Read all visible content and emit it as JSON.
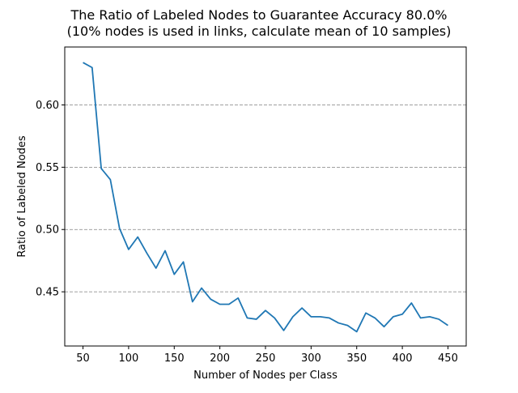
{
  "chart_data": {
    "type": "line",
    "title_line1": "The Ratio of Labeled Nodes to Guarantee Accuracy 80.0%",
    "title_line2": "(10% nodes is used in links, calculate mean of 10 samples)",
    "xlabel": "Number of Nodes per Class",
    "ylabel": "Ratio of Labeled Nodes",
    "xlim": [
      30,
      470
    ],
    "ylim": [
      0.4065,
      0.6465
    ],
    "xticks": [
      50,
      100,
      150,
      200,
      250,
      300,
      350,
      400,
      450
    ],
    "xtick_labels": [
      "50",
      "100",
      "150",
      "200",
      "250",
      "300",
      "350",
      "400",
      "450"
    ],
    "yticks": [
      0.45,
      0.5,
      0.55,
      0.6
    ],
    "ytick_labels": [
      "0.45",
      "0.50",
      "0.55",
      "0.60"
    ],
    "grid": "y-dashed",
    "line_color": "#1f77b4",
    "grid_color": "#808080",
    "series": [
      {
        "x": [
          50,
          60,
          70,
          80,
          90,
          100,
          110,
          120,
          130,
          140,
          150,
          160,
          170,
          180,
          190,
          200,
          210,
          220,
          230,
          240,
          250,
          260,
          270,
          280,
          290,
          300,
          310,
          320,
          330,
          340,
          350,
          360,
          370,
          380,
          390,
          400,
          410,
          420,
          430,
          440,
          450
        ],
        "y": [
          0.634,
          0.63,
          0.549,
          0.54,
          0.501,
          0.484,
          0.494,
          0.481,
          0.469,
          0.483,
          0.464,
          0.474,
          0.442,
          0.453,
          0.444,
          0.44,
          0.44,
          0.445,
          0.429,
          0.428,
          0.435,
          0.429,
          0.419,
          0.43,
          0.437,
          0.43,
          0.43,
          0.429,
          0.425,
          0.423,
          0.418,
          0.433,
          0.429,
          0.422,
          0.43,
          0.432,
          0.441,
          0.429,
          0.43,
          0.428,
          0.423
        ]
      }
    ]
  }
}
